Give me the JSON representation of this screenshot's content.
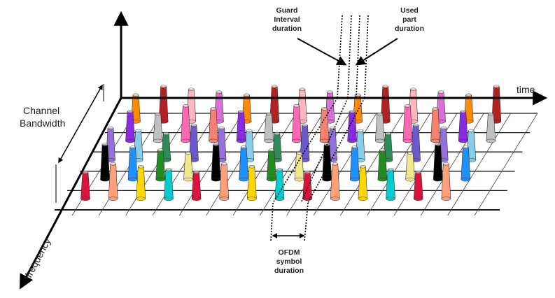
{
  "labels": {
    "time": "time",
    "frequency": "frequency",
    "channel_bandwidth_line1": "Channel",
    "channel_bandwidth_line2": "Bandwidth",
    "guard_line1": "Guard",
    "guard_line2": "Interval",
    "guard_line3": "duration",
    "used_line1": "Used",
    "used_line2": "part",
    "used_line3": "duration",
    "ofdm_line1": "OFDM",
    "ofdm_line2": "symbol",
    "ofdm_line3": "duration"
  },
  "colors": {
    "axis": "#000000",
    "grid": "#1a1a1a",
    "subcarrier_palette": [
      "#ff8c00",
      "#32cd32",
      "#1e90ff",
      "#ff69b4",
      "#ffff66",
      "#00ced1",
      "#9370db",
      "#b22222",
      "#808080",
      "#228b22",
      "#fa8072",
      "#7cfc00",
      "#dc143c",
      "#87ceeb",
      "#ffb6c1",
      "#4682b4",
      "#f0e68c",
      "#8a2be2",
      "#000080",
      "#ffa07a",
      "#2e8b57",
      "#da70d6",
      "#a0522d",
      "#000000",
      "#c0c0c0",
      "#40e0d0",
      "#ffd700",
      "#6a5acd"
    ]
  },
  "diagram": {
    "carrier_rows": 5,
    "symbol_columns": 14
  }
}
